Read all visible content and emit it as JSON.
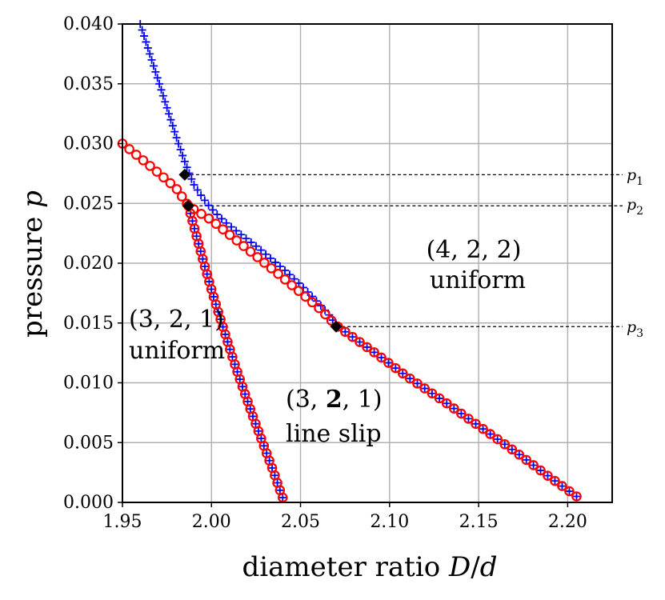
{
  "chart_data": {
    "type": "scatter",
    "title": "",
    "xlabel": "diameter ratio D/d",
    "ylabel": "pressure p",
    "xlim": [
      1.95,
      2.225
    ],
    "ylim": [
      0.0,
      0.04
    ],
    "grid": true,
    "colors": {
      "blue_plus": "#0000ff",
      "red_circle": "#ff0000",
      "diamond": "#000000",
      "grid": "#b0b0b0"
    },
    "x_ticks": [
      "1.95",
      "2.00",
      "2.05",
      "2.10",
      "2.15",
      "2.20"
    ],
    "y_ticks": [
      "0.000",
      "0.005",
      "0.010",
      "0.015",
      "0.020",
      "0.025",
      "0.030",
      "0.035",
      "0.040"
    ],
    "blue_plus_curve": {
      "marker": "plus",
      "x": [
        1.96,
        1.963,
        1.966,
        1.969,
        1.972,
        1.975,
        1.978,
        1.981,
        1.984,
        1.987,
        1.99,
        1.994,
        1.998,
        2.003,
        2.008,
        2.014,
        2.02,
        2.027,
        2.034,
        2.042,
        2.05,
        2.058,
        2.066,
        2.07
      ],
      "y": [
        0.04,
        0.0386,
        0.0372,
        0.0358,
        0.0344,
        0.033,
        0.0316,
        0.0302,
        0.0289,
        0.0277,
        0.0266,
        0.0257,
        0.0249,
        0.0241,
        0.0234,
        0.0227,
        0.022,
        0.0212,
        0.0203,
        0.0193,
        0.0182,
        0.017,
        0.0157,
        0.0148
      ]
    },
    "branch_321_line_slip": {
      "marker": "circle",
      "x": [
        1.987,
        1.991,
        1.995,
        1.999,
        2.003,
        2.007,
        2.011,
        2.015,
        2.019,
        2.023,
        2.027,
        2.031,
        2.035,
        2.038,
        2.04
      ],
      "y": [
        0.0248,
        0.0226,
        0.0204,
        0.0183,
        0.0163,
        0.0144,
        0.0125,
        0.0107,
        0.009,
        0.0073,
        0.0057,
        0.0041,
        0.0025,
        0.0012,
        0.0004
      ]
    },
    "branch_422_uniform": {
      "marker": "circle",
      "x": [
        1.95,
        1.965,
        1.98,
        1.987,
        2.0,
        2.02,
        2.04,
        2.06,
        2.07,
        2.09,
        2.11,
        2.13,
        2.15,
        2.17,
        2.19,
        2.205
      ],
      "y": [
        0.03,
        0.0282,
        0.0263,
        0.0248,
        0.0236,
        0.0212,
        0.0188,
        0.0163,
        0.0148,
        0.0127,
        0.0105,
        0.0085,
        0.0064,
        0.0043,
        0.0021,
        0.0005
      ]
    },
    "special_points": [
      {
        "label": "p_1",
        "x": 1.985,
        "y": 0.0274
      },
      {
        "label": "p_2",
        "x": 1.987,
        "y": 0.0248
      },
      {
        "label": "p_3",
        "x": 2.07,
        "y": 0.0147
      }
    ],
    "reference_lines": [
      {
        "label": "p1",
        "y": 0.0274
      },
      {
        "label": "p2",
        "y": 0.0248
      },
      {
        "label": "p3",
        "y": 0.0147
      }
    ],
    "annotations": [
      {
        "lines": [
          "(4, 2, 2)",
          "uniform"
        ]
      },
      {
        "lines": [
          "(3, 2, 1)",
          "uniform"
        ]
      },
      {
        "lines": [
          "(3, 2, 1)",
          "line slip"
        ],
        "bold_digit": "2"
      }
    ]
  }
}
